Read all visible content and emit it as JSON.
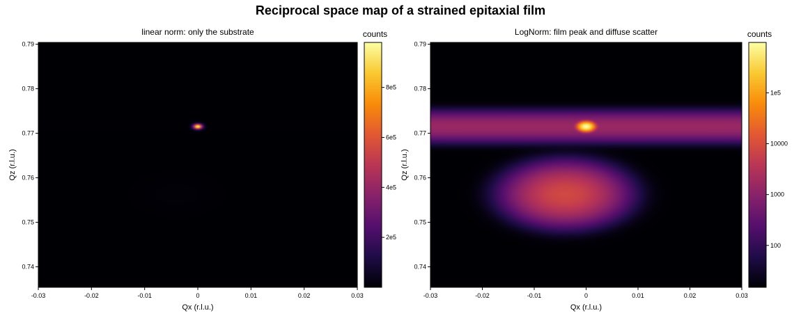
{
  "figure": {
    "title": "Reciprocal space map of a strained epitaxial film"
  },
  "colormap": "inferno",
  "chart_data": [
    {
      "type": "heatmap",
      "title": "linear norm: only the substrate",
      "xlabel": "Qx (r.l.u.)",
      "ylabel": "Qz (r.l.u.)",
      "xlim": [
        -0.03,
        0.03
      ],
      "ylim": [
        0.7354,
        0.7904
      ],
      "xticks": [
        -0.03,
        -0.02,
        -0.01,
        0,
        0.01,
        0.02,
        0.03
      ],
      "xtick_labels": [
        "-0.03",
        "-0.02",
        "-0.01",
        "0",
        "0.01",
        "0.02",
        "0.03"
      ],
      "yticks": [
        0.74,
        0.75,
        0.76,
        0.77,
        0.78,
        0.79
      ],
      "ytick_labels": [
        "0.74",
        "0.75",
        "0.76",
        "0.77",
        "0.78",
        "0.79"
      ],
      "colorbar": {
        "label": "counts",
        "scale": "linear",
        "range": [
          0,
          980000
        ],
        "ticks": [
          200000,
          400000,
          600000,
          800000
        ],
        "tick_labels": [
          "2e5",
          "4e5",
          "6e5",
          "8e5"
        ]
      },
      "norm": "linear",
      "peaks": [
        {
          "name": "substrate peak",
          "qx": 0.0,
          "qz": 0.7715,
          "amplitude": 980000,
          "sigma_qx": 0.0006,
          "sigma_qz": 0.0004
        },
        {
          "name": "film peak",
          "qx": -0.004,
          "qz": 0.7563,
          "amplitude": 8000,
          "sigma_qx": 0.0045,
          "sigma_qz": 0.0027
        },
        {
          "name": "diffuse streak",
          "qx": 0.0,
          "qz": 0.7715,
          "amplitude": 1500,
          "sigma_qx": 0.2,
          "sigma_qz": 0.0015
        }
      ],
      "background": 15
    },
    {
      "type": "heatmap",
      "title": "LogNorm: film peak and diffuse scatter",
      "xlabel": "Qx (r.l.u.)",
      "ylabel": "Qz (r.l.u.)",
      "xlim": [
        -0.03,
        0.03
      ],
      "ylim": [
        0.7354,
        0.7904
      ],
      "xticks": [
        -0.03,
        -0.02,
        -0.01,
        0,
        0.01,
        0.02,
        0.03
      ],
      "xtick_labels": [
        "-0.03",
        "-0.02",
        "-0.01",
        "0",
        "0.01",
        "0.02",
        "0.03"
      ],
      "yticks": [
        0.74,
        0.75,
        0.76,
        0.77,
        0.78,
        0.79
      ],
      "ytick_labels": [
        "0.74",
        "0.75",
        "0.76",
        "0.77",
        "0.78",
        "0.79"
      ],
      "colorbar": {
        "label": "counts",
        "scale": "log",
        "range": [
          15,
          980000
        ],
        "ticks": [
          100,
          1000,
          10000,
          100000
        ],
        "tick_labels": [
          "100",
          "1000",
          "10000",
          "1e5"
        ]
      },
      "norm": "log",
      "peaks": [
        {
          "name": "substrate peak",
          "qx": 0.0,
          "qz": 0.7715,
          "amplitude": 980000,
          "sigma_qx": 0.0006,
          "sigma_qz": 0.0004
        },
        {
          "name": "film peak",
          "qx": -0.004,
          "qz": 0.7563,
          "amplitude": 8000,
          "sigma_qx": 0.0045,
          "sigma_qz": 0.0027
        },
        {
          "name": "diffuse streak",
          "qx": 0.0,
          "qz": 0.7715,
          "amplitude": 1500,
          "sigma_qx": 0.2,
          "sigma_qz": 0.0015
        }
      ],
      "background": 15
    }
  ]
}
